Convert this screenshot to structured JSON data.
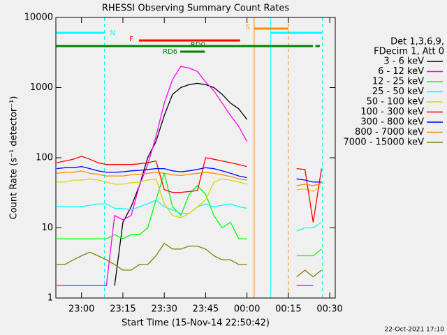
{
  "chart_data": {
    "type": "line",
    "title": "RHESSI Observing Summary Count Rates",
    "xlabel": "Start Time (15-Nov-14 22:50:42)",
    "ylabel": "Count Rate (s⁻¹ detector⁻¹)",
    "legend_header": [
      "Det 1,3,6,9,",
      "FDecim 1, Att 0"
    ],
    "footer": "22-Oct-2021 17:10",
    "ylog": true,
    "legend": "right",
    "xlim": [
      1370.7,
      1472
    ],
    "ylim": [
      1,
      10000
    ],
    "yticks": [
      1,
      10,
      100,
      1000,
      10000
    ],
    "xticks": [
      {
        "value": 1380,
        "label": "23:00"
      },
      {
        "value": 1395,
        "label": "23:15"
      },
      {
        "value": 1410,
        "label": "23:30"
      },
      {
        "value": 1425,
        "label": "23:45"
      },
      {
        "value": 1440,
        "label": "00:00"
      },
      {
        "value": 1455,
        "label": "00:15"
      },
      {
        "value": 1470,
        "label": "00:30"
      }
    ],
    "x": [
      1371,
      1374,
      1377,
      1380,
      1383,
      1386,
      1389,
      1392,
      1395,
      1398,
      1401,
      1404,
      1407,
      1410,
      1413,
      1416,
      1419,
      1422,
      1425,
      1428,
      1431,
      1434,
      1437,
      1440,
      1450,
      1458,
      1461,
      1464,
      1467
    ],
    "series": [
      {
        "name": "3 - 6 keV",
        "color": "#000000",
        "values": [
          null,
          null,
          null,
          null,
          null,
          null,
          null,
          1.5,
          12,
          20,
          40,
          100,
          170,
          400,
          800,
          1000,
          1100,
          1150,
          1100,
          1000,
          800,
          600,
          500,
          350,
          null,
          null,
          null,
          null,
          null
        ]
      },
      {
        "name": "6 - 12 keV",
        "color": "#ff00ff",
        "values": [
          1.5,
          1.5,
          1.5,
          1.5,
          1.5,
          1.5,
          1.5,
          15,
          13,
          15,
          40,
          80,
          200,
          600,
          1300,
          2000,
          1900,
          1700,
          1200,
          900,
          600,
          400,
          280,
          170,
          null,
          1.5,
          1.5,
          1.5,
          null
        ]
      },
      {
        "name": "12 - 25 keV",
        "color": "#00ff00",
        "values": [
          7,
          7,
          7,
          7,
          7,
          7,
          7,
          8,
          7,
          8,
          8,
          10,
          25,
          60,
          20,
          15,
          30,
          40,
          30,
          15,
          10,
          12,
          7,
          7,
          null,
          4,
          4,
          4,
          5
        ]
      },
      {
        "name": "25 - 50 keV",
        "color": "#00ffff",
        "values": [
          20,
          20,
          20,
          20,
          21,
          22,
          22,
          19,
          19,
          18,
          20,
          22,
          25,
          20,
          18,
          16,
          16,
          20,
          22,
          20,
          21,
          22,
          20,
          19,
          null,
          9,
          10,
          10,
          12
        ]
      },
      {
        "name": "50 - 100 keV",
        "color": "#d8d800",
        "values": [
          45,
          45,
          48,
          48,
          50,
          48,
          45,
          42,
          42,
          44,
          45,
          48,
          50,
          22,
          15,
          14,
          16,
          20,
          25,
          45,
          50,
          48,
          45,
          42,
          null,
          35,
          36,
          33,
          40
        ]
      },
      {
        "name": "100 - 300 keV",
        "color": "#ff0000",
        "values": [
          85,
          90,
          95,
          105,
          95,
          85,
          80,
          80,
          80,
          80,
          82,
          85,
          90,
          35,
          32,
          32,
          33,
          34,
          100,
          95,
          90,
          85,
          80,
          75,
          null,
          70,
          68,
          12,
          70
        ]
      },
      {
        "name": "300 - 800 keV",
        "color": "#0000ff",
        "values": [
          70,
          72,
          72,
          75,
          70,
          65,
          62,
          62,
          63,
          65,
          66,
          68,
          70,
          70,
          65,
          63,
          65,
          68,
          72,
          70,
          65,
          60,
          55,
          52,
          null,
          50,
          48,
          45,
          45
        ]
      },
      {
        "name": "800 - 7000 keV",
        "color": "#ff8c00",
        "values": [
          60,
          62,
          62,
          65,
          60,
          58,
          55,
          55,
          55,
          57,
          58,
          60,
          62,
          60,
          57,
          56,
          58,
          60,
          62,
          60,
          57,
          54,
          50,
          48,
          null,
          40,
          42,
          40,
          43
        ]
      },
      {
        "name": "7000 - 15000 keV",
        "color": "#808000",
        "values": [
          3,
          3,
          3.5,
          4,
          4.5,
          4,
          3.5,
          3,
          2.5,
          2.5,
          3,
          3,
          4,
          6,
          5,
          5,
          5.5,
          5.5,
          5,
          4,
          3.5,
          3.5,
          3,
          3,
          null,
          2,
          2.5,
          2,
          2.5
        ]
      }
    ],
    "flags": [
      {
        "label": "N",
        "color": "#00ffff",
        "segments": [
          [
            1370.7,
            1388.3
          ],
          [
            1448.6,
            1467.3
          ]
        ],
        "markers": true
      },
      {
        "label": "F",
        "color": "#ff0000",
        "segments": [
          [
            1400.8,
            1437.5
          ]
        ]
      },
      {
        "label": "S",
        "color": "#ff8c00",
        "segments": [
          [
            1442.6,
            1455
          ]
        ],
        "markers": true
      },
      {
        "label": "RD0",
        "color": "#008000",
        "segments": [
          [
            1370.7,
            1463.9
          ],
          [
            1464.8,
            1466.4
          ]
        ]
      },
      {
        "label": "RD6",
        "color": "#008000",
        "segments": [
          [
            1415.8,
            1424.7
          ]
        ]
      }
    ]
  }
}
